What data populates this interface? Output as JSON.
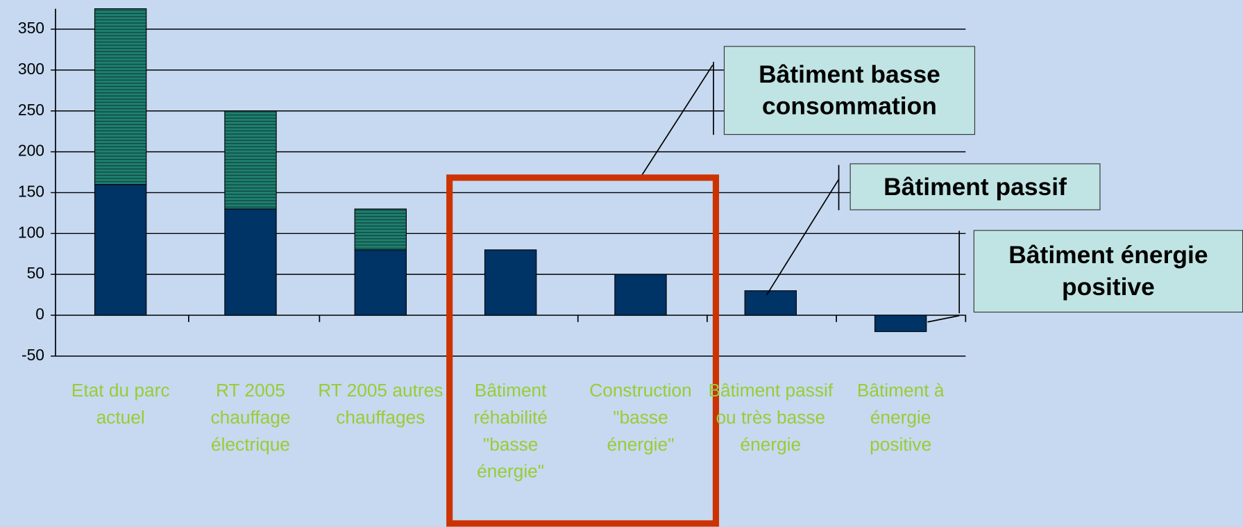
{
  "chart_data": {
    "type": "stacked_bar",
    "categories": [
      "Etat du parc actuel",
      "RT 2005 chauffage électrique",
      "RT 2005 autres chauffages",
      "Bâtiment réhabilité \"basse énergie\"",
      "Construction \"basse énergie\"",
      "Bâtiment passif ou très basse énergie",
      "Bâtiment à énergie positive"
    ],
    "series": [
      {
        "color": "#003366",
        "values": [
          160,
          130,
          80,
          80,
          50,
          30,
          -20
        ]
      },
      {
        "color": "#1f7f6f",
        "values": [
          215,
          120,
          50,
          0,
          0,
          0,
          0
        ]
      }
    ],
    "ylim": [
      -50,
      375
    ],
    "yticks": [
      -50,
      0,
      50,
      100,
      150,
      200,
      250,
      300,
      350
    ],
    "grid": true,
    "annotations": [
      "Bâtiment basse consommation",
      "Bâtiment passif",
      "Bâtiment énergie positive"
    ]
  }
}
